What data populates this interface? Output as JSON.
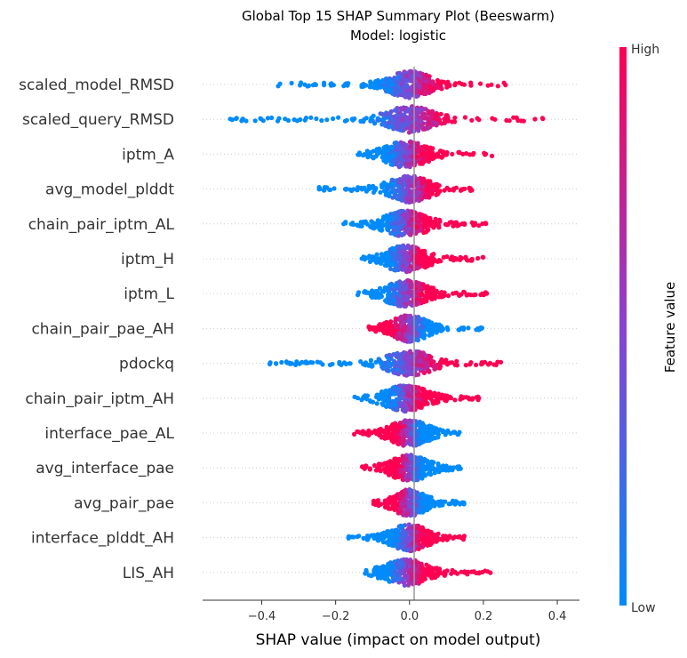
{
  "chart_data": {
    "type": "scatter",
    "subtype": "beeswarm",
    "title": "Global Top 15 SHAP Summary Plot (Beeswarm)",
    "subtitle": "Model: logistic",
    "xlabel": "SHAP value (impact on model output)",
    "ylabel": "",
    "xlim": [
      -0.56,
      0.46
    ],
    "xticks": [
      -0.4,
      -0.2,
      0.0,
      0.2,
      0.4
    ],
    "xtick_labels": [
      "−0.4",
      "−0.2",
      "0.0",
      "0.2",
      "0.4"
    ],
    "grid": false,
    "colorbar": {
      "label": "Feature value",
      "high_label": "High",
      "low_label": "Low",
      "high_color": "#ff0052",
      "low_color": "#008bfb"
    },
    "features": [
      {
        "name": "scaled_model_RMSD",
        "min": -0.37,
        "max": 0.26,
        "dir": 1,
        "center": 0.0,
        "spread": 0.045
      },
      {
        "name": "scaled_query_RMSD",
        "min": -0.51,
        "max": 0.42,
        "dir": 1,
        "center": 0.0,
        "spread": 0.05
      },
      {
        "name": "iptm_A",
        "min": -0.15,
        "max": 0.23,
        "dir": 1,
        "center": -0.01,
        "spread": 0.045
      },
      {
        "name": "avg_model_plddt",
        "min": -0.26,
        "max": 0.17,
        "dir": 1,
        "center": 0.0,
        "spread": 0.045
      },
      {
        "name": "chain_pair_iptm_AL",
        "min": -0.18,
        "max": 0.21,
        "dir": 1,
        "center": -0.01,
        "spread": 0.045
      },
      {
        "name": "iptm_H",
        "min": -0.13,
        "max": 0.2,
        "dir": 1,
        "center": -0.01,
        "spread": 0.045
      },
      {
        "name": "iptm_L",
        "min": -0.14,
        "max": 0.21,
        "dir": 1,
        "center": -0.01,
        "spread": 0.045
      },
      {
        "name": "chain_pair_pae_AH",
        "min": -0.11,
        "max": 0.2,
        "dir": -1,
        "center": 0.0,
        "spread": 0.04
      },
      {
        "name": "pdockq",
        "min": -0.38,
        "max": 0.27,
        "dir": 1,
        "center": 0.0,
        "spread": 0.045
      },
      {
        "name": "chain_pair_iptm_AH",
        "min": -0.15,
        "max": 0.2,
        "dir": 1,
        "center": -0.01,
        "spread": 0.045
      },
      {
        "name": "interface_pae_AL",
        "min": -0.15,
        "max": 0.14,
        "dir": -1,
        "center": 0.0,
        "spread": 0.04
      },
      {
        "name": "avg_interface_pae",
        "min": -0.13,
        "max": 0.14,
        "dir": -1,
        "center": 0.0,
        "spread": 0.04
      },
      {
        "name": "avg_pair_pae",
        "min": -0.1,
        "max": 0.15,
        "dir": -1,
        "center": 0.0,
        "spread": 0.035
      },
      {
        "name": "interface_plddt_AH",
        "min": -0.17,
        "max": 0.15,
        "dir": 1,
        "center": 0.0,
        "spread": 0.04
      },
      {
        "name": "LIS_AH",
        "min": -0.12,
        "max": 0.22,
        "dir": 1,
        "center": -0.01,
        "spread": 0.045
      }
    ]
  }
}
